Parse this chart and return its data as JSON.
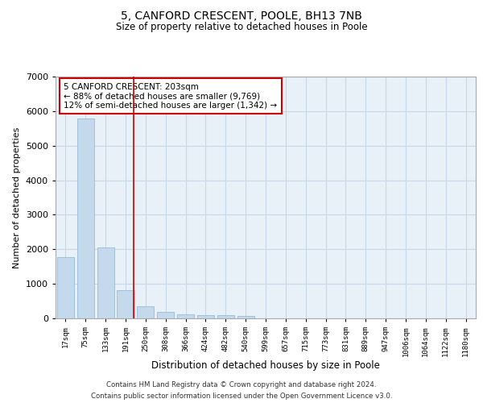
{
  "title": "5, CANFORD CRESCENT, POOLE, BH13 7NB",
  "subtitle": "Size of property relative to detached houses in Poole",
  "xlabel": "Distribution of detached houses by size in Poole",
  "ylabel": "Number of detached properties",
  "bar_color": "#c5d9ed",
  "bar_edge_color": "#8ab4d4",
  "grid_color": "#c8d8e8",
  "background_color": "#e8f0f8",
  "vline_color": "#cc0000",
  "annotation_text": "5 CANFORD CRESCENT: 203sqm\n← 88% of detached houses are smaller (9,769)\n12% of semi-detached houses are larger (1,342) →",
  "annotation_box_color": "#cc0000",
  "categories": [
    "17sqm",
    "75sqm",
    "133sqm",
    "191sqm",
    "250sqm",
    "308sqm",
    "366sqm",
    "424sqm",
    "482sqm",
    "540sqm",
    "599sqm",
    "657sqm",
    "715sqm",
    "773sqm",
    "831sqm",
    "889sqm",
    "947sqm",
    "1006sqm",
    "1064sqm",
    "1122sqm",
    "1180sqm"
  ],
  "values": [
    1780,
    5780,
    2060,
    820,
    340,
    195,
    120,
    105,
    100,
    70,
    0,
    0,
    0,
    0,
    0,
    0,
    0,
    0,
    0,
    0,
    0
  ],
  "ylim": [
    0,
    7000
  ],
  "yticks": [
    0,
    1000,
    2000,
    3000,
    4000,
    5000,
    6000,
    7000
  ],
  "footer_line1": "Contains HM Land Registry data © Crown copyright and database right 2024.",
  "footer_line2": "Contains public sector information licensed under the Open Government Licence v3.0."
}
